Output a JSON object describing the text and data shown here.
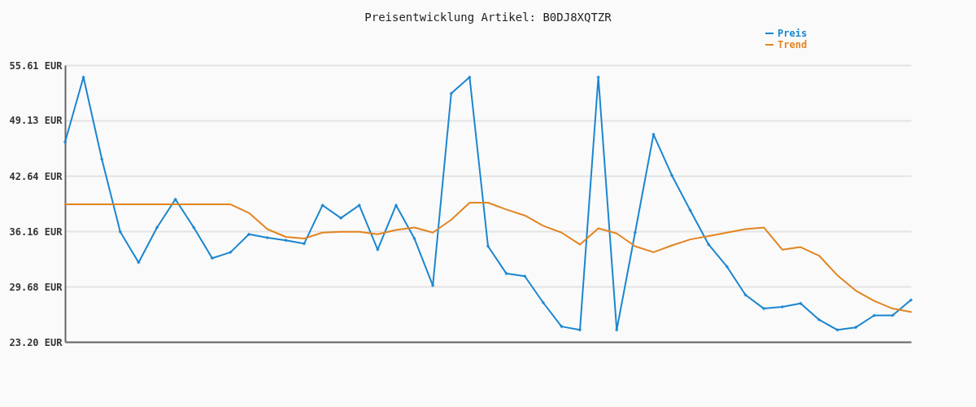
{
  "chart_data": {
    "type": "line",
    "title": "Preisentwicklung Artikel: B0DJ8XQTZR",
    "categories": [
      null,
      null,
      null,
      null,
      null,
      null,
      null,
      null,
      null,
      null,
      null,
      null,
      null,
      null,
      null,
      null,
      null,
      null,
      null,
      null,
      null,
      null,
      null,
      null,
      null,
      null,
      null,
      null,
      null,
      null,
      null,
      null,
      null,
      null,
      null,
      null,
      null,
      null,
      null,
      null,
      null,
      null,
      null,
      null,
      null,
      null,
      null
    ],
    "series": [
      {
        "name": "Preis",
        "color": "#1a86d0",
        "marker": "diamond",
        "values": [
          46.6,
          54.2,
          44.6,
          36.1,
          32.5,
          36.6,
          39.9,
          36.6,
          33.0,
          33.7,
          35.8,
          35.4,
          35.1,
          34.7,
          39.2,
          37.7,
          39.2,
          34.0,
          39.2,
          35.3,
          29.8,
          52.3,
          54.2,
          34.4,
          31.2,
          30.9,
          27.8,
          25.0,
          24.6,
          54.2,
          24.6,
          36.0,
          47.5,
          42.7,
          38.6,
          34.6,
          32.0,
          28.7,
          27.1,
          27.3,
          27.7,
          25.8,
          24.6,
          24.9,
          26.3,
          26.3,
          28.1
        ]
      },
      {
        "name": "Trend",
        "color": "#e3841f",
        "marker": "none",
        "values": [
          39.3,
          39.3,
          39.3,
          39.3,
          39.3,
          39.3,
          39.3,
          39.3,
          39.3,
          39.3,
          38.3,
          36.4,
          35.5,
          35.3,
          36.0,
          36.1,
          36.1,
          35.8,
          36.3,
          36.6,
          36.0,
          37.5,
          39.5,
          39.5,
          38.7,
          38.0,
          36.8,
          36.0,
          34.6,
          36.5,
          35.9,
          34.4,
          33.7,
          34.5,
          35.2,
          35.6,
          36.0,
          36.4,
          36.6,
          34.0,
          34.3,
          33.3,
          31.0,
          29.2,
          28.0,
          27.1,
          26.7
        ]
      }
    ],
    "ylim": [
      23.2,
      55.61
    ],
    "yticks": [
      {
        "value": 23.2,
        "label": "23.20 EUR"
      },
      {
        "value": 29.68,
        "label": "29.68 EUR"
      },
      {
        "value": 36.16,
        "label": "36.16 EUR"
      },
      {
        "value": 42.64,
        "label": "42.64 EUR"
      },
      {
        "value": 49.13,
        "label": "49.13 EUR"
      },
      {
        "value": 55.61,
        "label": "55.61 EUR"
      }
    ],
    "grid": "y",
    "legend": "top right",
    "tick_labels": "y"
  }
}
